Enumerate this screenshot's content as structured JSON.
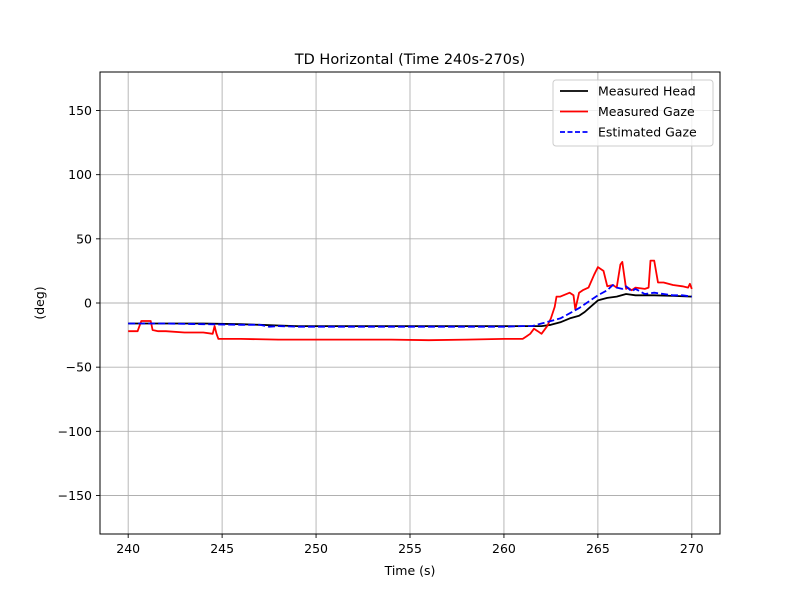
{
  "chart_data": {
    "type": "line",
    "title": "TD Horizontal (Time 240s-270s)",
    "xlabel": "Time (s)",
    "ylabel": "(deg)",
    "xlim": [
      238.5,
      271.5
    ],
    "ylim": [
      -180,
      180
    ],
    "x_ticks": [
      240,
      245,
      250,
      255,
      260,
      265,
      270
    ],
    "y_ticks": [
      -150,
      -100,
      -50,
      0,
      50,
      100,
      150
    ],
    "x_tick_labels": [
      "240",
      "245",
      "250",
      "255",
      "260",
      "265",
      "270"
    ],
    "y_tick_labels": [
      "−150",
      "−100",
      "−50",
      "0",
      "50",
      "100",
      "150"
    ],
    "grid": true,
    "legend_position": "top-right",
    "series": [
      {
        "name": "Measured Head",
        "color": "#000000",
        "dash": "solid",
        "x": [
          240,
          242,
          244,
          246,
          247,
          248,
          249,
          250,
          252,
          254,
          256,
          258,
          260,
          261,
          261.5,
          262,
          262.5,
          263,
          263.5,
          264,
          264.3,
          264.6,
          265,
          265.5,
          266,
          266.5,
          267,
          268,
          269,
          270
        ],
        "y": [
          -16,
          -16,
          -16,
          -16.5,
          -17,
          -17.5,
          -18,
          -18,
          -18,
          -18,
          -18,
          -18,
          -18,
          -18,
          -18,
          -18,
          -17,
          -15,
          -12,
          -10,
          -7,
          -3,
          2,
          4,
          5,
          7,
          6,
          6,
          5.5,
          5
        ]
      },
      {
        "name": "Measured Gaze",
        "color": "#ff0000",
        "dash": "solid",
        "x": [
          240,
          240.5,
          240.7,
          240.8,
          241.2,
          241.3,
          241.6,
          242,
          243,
          244,
          244.5,
          244.6,
          244.7,
          244.8,
          245,
          246,
          248,
          250,
          252,
          254,
          256,
          258,
          260,
          261,
          261.2,
          261.4,
          261.6,
          261.8,
          262,
          262.2,
          262.3,
          262.5,
          262.7,
          262.8,
          263,
          263.5,
          263.7,
          263.8,
          264,
          264.2,
          264.5,
          264.8,
          265,
          265.3,
          265.5,
          265.8,
          266,
          266.2,
          266.3,
          266.5,
          266.6,
          266.8,
          267,
          267.5,
          267.7,
          267.8,
          268,
          268.2,
          268.5,
          269,
          269.5,
          269.8,
          269.9,
          270
        ],
        "y": [
          -22,
          -22,
          -14,
          -14,
          -14,
          -21,
          -22,
          -22,
          -23,
          -23,
          -24,
          -18,
          -24,
          -28,
          -28,
          -28,
          -28.5,
          -28.5,
          -28.5,
          -28.5,
          -29,
          -28.5,
          -28,
          -28,
          -26,
          -24,
          -20,
          -22,
          -24,
          -20,
          -18,
          -12,
          -3,
          5,
          5,
          8,
          6,
          -5,
          8,
          10,
          12,
          22,
          28,
          25,
          13,
          14,
          12,
          30,
          32,
          11,
          12,
          10,
          12,
          11,
          12,
          33,
          33,
          16,
          16,
          14,
          13,
          12,
          15,
          11
        ]
      },
      {
        "name": "Estimated Gaze",
        "color": "#0000ff",
        "dash": "dashed",
        "x": [
          240,
          242,
          244,
          246,
          247,
          247.5,
          248,
          249,
          250,
          252,
          254,
          256,
          258,
          260,
          261,
          261.5,
          262,
          262.5,
          263,
          263.5,
          264,
          264.3,
          264.6,
          265,
          265.5,
          265.8,
          266,
          266.3,
          266.5,
          266.8,
          267,
          267.5,
          268,
          268.5,
          269,
          269.5,
          270
        ],
        "y": [
          -16,
          -16,
          -16.5,
          -17,
          -17,
          -18.5,
          -18,
          -18.5,
          -18.5,
          -18.5,
          -18.5,
          -18.5,
          -18.5,
          -18.5,
          -18,
          -18,
          -16,
          -14,
          -12,
          -8,
          -4,
          -1,
          2,
          6,
          10,
          14,
          12,
          11,
          13,
          9,
          11,
          7,
          8,
          7,
          6,
          6,
          5
        ]
      }
    ]
  }
}
